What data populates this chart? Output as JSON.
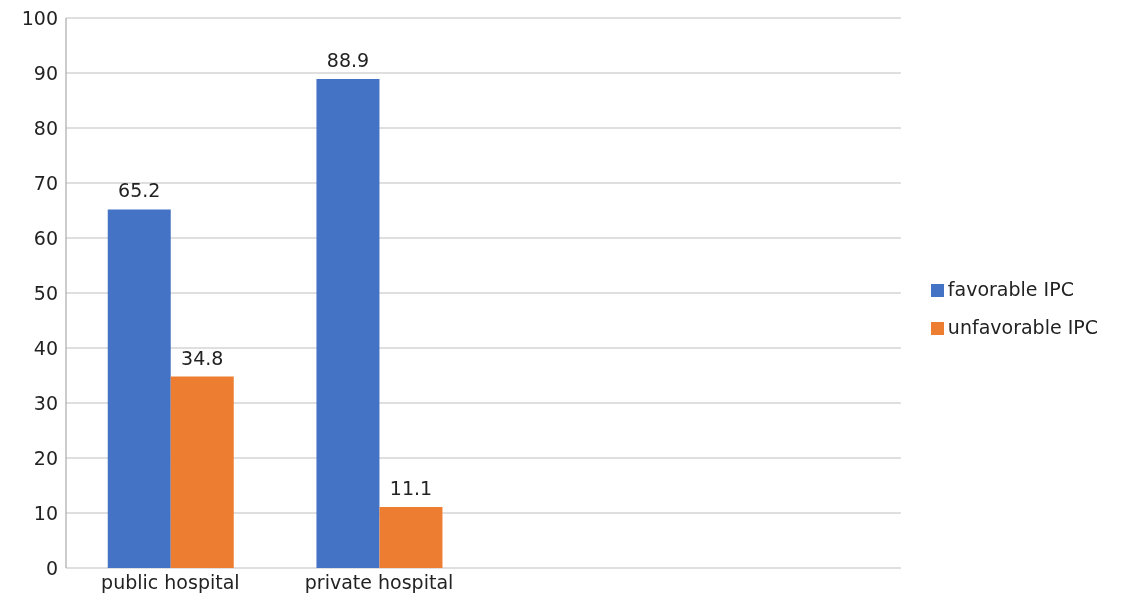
{
  "chart_data": {
    "type": "bar",
    "categories": [
      "public hospital",
      "private hospital",
      null,
      null
    ],
    "series": [
      {
        "name": "favorable IPC",
        "color": "#4472c4",
        "values": [
          65.2,
          88.9,
          null,
          null
        ]
      },
      {
        "name": "unfavorable IPC",
        "color": "#ed7d31",
        "values": [
          34.8,
          11.1,
          null,
          null
        ]
      }
    ],
    "ylim": [
      0,
      100
    ],
    "yticks": [
      0,
      10,
      20,
      30,
      40,
      50,
      60,
      70,
      80,
      90,
      100
    ],
    "grid": "y",
    "legend": "right",
    "data_labels": true
  }
}
